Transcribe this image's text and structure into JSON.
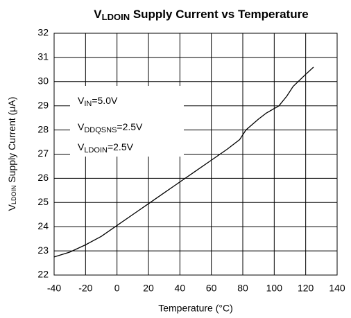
{
  "chart_data": {
    "type": "line",
    "title": {
      "main": "V",
      "sub": "LDOIN",
      "rest": " Supply Current vs Temperature"
    },
    "x_label": "Temperature (°C)",
    "y_label": {
      "main": "V",
      "sub": "LDOIN",
      "rest": " Supply Current (μA)"
    },
    "annotations": [
      {
        "main": "V",
        "sub": "IN",
        "rest": "=5.0V"
      },
      {
        "main": "V",
        "sub": "DDQSNS",
        "rest": "=2.5V"
      },
      {
        "main": "V",
        "sub": "LDOIN",
        "rest": "=2.5V"
      }
    ],
    "x": [
      -40,
      -30,
      -20,
      -10,
      0,
      10,
      20,
      30,
      40,
      50,
      60,
      70,
      78,
      82,
      90,
      95,
      103,
      108,
      112,
      120,
      125
    ],
    "series": [
      {
        "name": "Supply Current",
        "color": "#000000",
        "values": [
          22.75,
          22.95,
          23.25,
          23.6,
          24.05,
          24.5,
          24.95,
          25.4,
          25.85,
          26.3,
          26.75,
          27.2,
          27.6,
          28.0,
          28.45,
          28.7,
          29.0,
          29.4,
          29.8,
          30.3,
          30.6
        ]
      }
    ],
    "xlim": [
      -40,
      140
    ],
    "xticks": [
      -40,
      -20,
      0,
      20,
      40,
      60,
      80,
      100,
      120,
      140
    ],
    "ylim": [
      22,
      32
    ],
    "yticks": [
      22,
      23,
      24,
      25,
      26,
      27,
      28,
      29,
      30,
      31,
      32
    ],
    "grid": true
  }
}
